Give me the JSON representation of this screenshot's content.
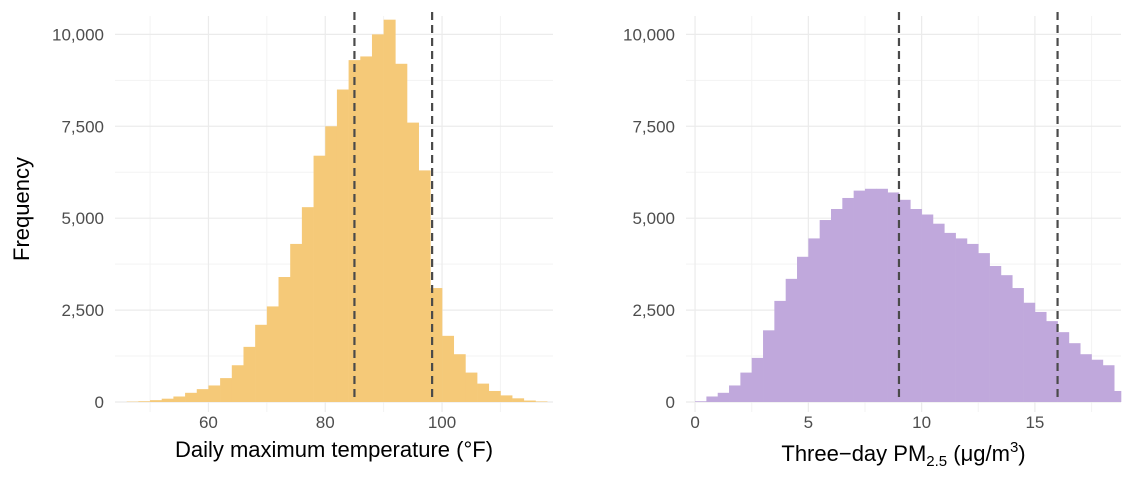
{
  "chart_data": [
    {
      "type": "bar",
      "subtype": "histogram",
      "ylabel": "Frequency",
      "xlabel": "Daily maximum temperature (°F)",
      "xlim": [
        44,
        119
      ],
      "ylim": [
        0,
        10500
      ],
      "x_ticks": [
        60,
        80,
        100
      ],
      "y_ticks": [
        0,
        2500,
        5000,
        7500,
        10000
      ],
      "y_tick_labels": [
        "0",
        "2,500",
        "5,000",
        "7,500",
        "10,000"
      ],
      "grid": true,
      "bar_color": "#f5c978",
      "bin_width": 2,
      "bins": [
        47,
        49,
        51,
        53,
        55,
        57,
        59,
        61,
        63,
        65,
        67,
        69,
        71,
        73,
        75,
        77,
        79,
        81,
        83,
        85,
        87,
        89,
        91,
        93,
        95,
        97,
        99,
        101,
        103,
        105,
        107,
        109,
        111,
        113,
        115,
        117
      ],
      "values": [
        10,
        20,
        50,
        90,
        150,
        250,
        350,
        450,
        650,
        1000,
        1500,
        2100,
        2600,
        3400,
        4300,
        5300,
        6700,
        7500,
        8500,
        9300,
        9400,
        10000,
        10400,
        9200,
        7600,
        6300,
        3100,
        1800,
        1300,
        800,
        500,
        300,
        180,
        100,
        40,
        15
      ],
      "reference_lines": [
        85,
        98.3
      ],
      "reference_line_style": "dashed"
    },
    {
      "type": "bar",
      "subtype": "histogram",
      "xlabel_main": "Three−day PM",
      "xlabel_subscript": "2.5",
      "xlabel_unit": " (μg/m",
      "xlabel_superscript": "3",
      "xlabel_close": ")",
      "xlim": [
        -0.4,
        18.8
      ],
      "ylim": [
        0,
        10500
      ],
      "x_ticks": [
        0,
        5,
        10,
        15
      ],
      "y_ticks": [
        0,
        2500,
        5000,
        7500,
        10000
      ],
      "y_tick_labels": [
        "0",
        "2,500",
        "5,000",
        "7,500",
        "10,000"
      ],
      "grid": true,
      "bar_color": "#c0a8dc",
      "bin_width": 0.5,
      "bins": [
        0.25,
        0.75,
        1.25,
        1.75,
        2.25,
        2.75,
        3.25,
        3.75,
        4.25,
        4.75,
        5.25,
        5.75,
        6.25,
        6.75,
        7.25,
        7.75,
        8.25,
        8.75,
        9.25,
        9.75,
        10.25,
        10.75,
        11.25,
        11.75,
        12.25,
        12.75,
        13.25,
        13.75,
        14.25,
        14.75,
        15.25,
        15.75,
        16.25,
        16.75,
        17.25,
        17.75,
        18.25,
        18.75
      ],
      "values": [
        20,
        150,
        250,
        450,
        800,
        1200,
        1950,
        2750,
        3350,
        3950,
        4450,
        4950,
        5250,
        5550,
        5750,
        5800,
        5800,
        5700,
        5500,
        5250,
        5100,
        4850,
        4600,
        4450,
        4300,
        4050,
        3700,
        3450,
        3100,
        2700,
        2450,
        2200,
        1900,
        1600,
        1300,
        1150,
        1000,
        300
      ],
      "reference_lines": [
        9,
        16
      ],
      "reference_line_style": "dashed"
    }
  ]
}
